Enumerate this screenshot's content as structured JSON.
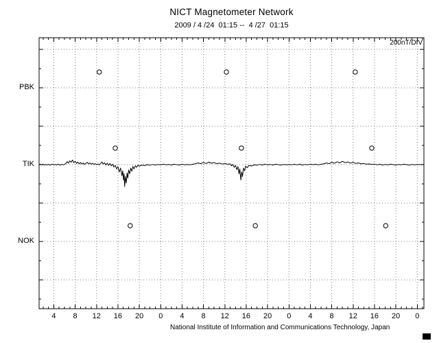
{
  "chart_data": {
    "type": "line",
    "title": "NICT Magnetometer Network",
    "subtitle": "2009 / 4 /24  01:15 --  4 /27  01:15",
    "unit_label": "200nT/DIV",
    "caption": "National Institute of Information and Communications Technology, Japan",
    "grid": "dotted",
    "x_axis": {
      "t_start": 1.25,
      "t_end": 73.25,
      "major_tick_hours": 4,
      "minor_tick_hours": 1,
      "tick_labels": [
        {
          "t": 4,
          "label": "4"
        },
        {
          "t": 8,
          "label": "8"
        },
        {
          "t": 12,
          "label": "12"
        },
        {
          "t": 16,
          "label": "16"
        },
        {
          "t": 20,
          "label": "20"
        },
        {
          "t": 24,
          "label": "0"
        },
        {
          "t": 28,
          "label": "4"
        },
        {
          "t": 32,
          "label": "8"
        },
        {
          "t": 36,
          "label": "12"
        },
        {
          "t": 40,
          "label": "16"
        },
        {
          "t": 44,
          "label": "20"
        },
        {
          "t": 48,
          "label": "0"
        },
        {
          "t": 52,
          "label": "4"
        },
        {
          "t": 56,
          "label": "8"
        },
        {
          "t": 60,
          "label": "12"
        },
        {
          "t": 64,
          "label": "16"
        },
        {
          "t": 68,
          "label": "20"
        },
        {
          "t": 72,
          "label": "0"
        }
      ]
    },
    "y_axis": {
      "nT_per_div": 200,
      "stations": [
        {
          "label": "PBK"
        },
        {
          "label": "TIK"
        },
        {
          "label": "NOK"
        }
      ]
    },
    "series": [
      {
        "name": "TIK",
        "station": "TIK",
        "points": [
          [
            1.25,
            0
          ],
          [
            1.5,
            2
          ],
          [
            1.75,
            -1
          ],
          [
            2,
            3
          ],
          [
            2.25,
            -2
          ],
          [
            2.5,
            1
          ],
          [
            2.75,
            -2
          ],
          [
            3,
            2
          ],
          [
            3.25,
            -3
          ],
          [
            3.5,
            0
          ],
          [
            3.75,
            2
          ],
          [
            4,
            -1
          ],
          [
            4.25,
            1
          ],
          [
            4.5,
            -2
          ],
          [
            4.75,
            3
          ],
          [
            5,
            0
          ],
          [
            5.25,
            -2
          ],
          [
            5.5,
            2
          ],
          [
            5.75,
            -1
          ],
          [
            6,
            1
          ],
          [
            6.25,
            6
          ],
          [
            6.5,
            16
          ],
          [
            6.75,
            8
          ],
          [
            7,
            20
          ],
          [
            7.25,
            12
          ],
          [
            7.5,
            24
          ],
          [
            7.75,
            10
          ],
          [
            8,
            18
          ],
          [
            8.25,
            6
          ],
          [
            8.5,
            14
          ],
          [
            8.75,
            4
          ],
          [
            9,
            11
          ],
          [
            9.25,
            3
          ],
          [
            9.5,
            9
          ],
          [
            9.75,
            1
          ],
          [
            10,
            7
          ],
          [
            10.25,
            12
          ],
          [
            10.5,
            4
          ],
          [
            10.75,
            9
          ],
          [
            11,
            2
          ],
          [
            11.25,
            7
          ],
          [
            11.5,
            1
          ],
          [
            11.75,
            5
          ],
          [
            12,
            0
          ],
          [
            12.25,
            4
          ],
          [
            12.5,
            -1
          ],
          [
            12.75,
            6
          ],
          [
            13,
            14
          ],
          [
            13.25,
            3
          ],
          [
            13.5,
            10
          ],
          [
            13.75,
            -2
          ],
          [
            14,
            8
          ],
          [
            14.25,
            -4
          ],
          [
            14.5,
            6
          ],
          [
            14.75,
            -6
          ],
          [
            15,
            2
          ],
          [
            15.25,
            -12
          ],
          [
            15.5,
            -4
          ],
          [
            15.75,
            -22
          ],
          [
            16,
            -10
          ],
          [
            16.25,
            -38
          ],
          [
            16.5,
            -18
          ],
          [
            16.75,
            -58
          ],
          [
            16.9,
            -32
          ],
          [
            17.05,
            -80
          ],
          [
            17.15,
            -48
          ],
          [
            17.25,
            -114
          ],
          [
            17.4,
            -62
          ],
          [
            17.55,
            -96
          ],
          [
            17.7,
            -44
          ],
          [
            17.85,
            -70
          ],
          [
            18,
            -28
          ],
          [
            18.2,
            -48
          ],
          [
            18.4,
            -18
          ],
          [
            18.6,
            -34
          ],
          [
            18.8,
            -10
          ],
          [
            19,
            -22
          ],
          [
            19.25,
            -6
          ],
          [
            19.5,
            -14
          ],
          [
            19.75,
            -3
          ],
          [
            20,
            -8
          ],
          [
            20.5,
            -2
          ],
          [
            21,
            -5
          ],
          [
            21.5,
            0
          ],
          [
            22,
            -3
          ],
          [
            22.5,
            1
          ],
          [
            23,
            -2
          ],
          [
            23.5,
            1
          ],
          [
            24,
            -1
          ],
          [
            24.5,
            2
          ],
          [
            25,
            -1
          ],
          [
            25.5,
            1
          ],
          [
            26,
            -2
          ],
          [
            26.5,
            2
          ],
          [
            27,
            0
          ],
          [
            27.5,
            -2
          ],
          [
            28,
            2
          ],
          [
            28.5,
            -1
          ],
          [
            29,
            1
          ],
          [
            29.5,
            -1
          ],
          [
            30,
            2
          ],
          [
            30.5,
            5
          ],
          [
            31,
            9
          ],
          [
            31.5,
            5
          ],
          [
            32,
            11
          ],
          [
            32.5,
            6
          ],
          [
            33,
            13
          ],
          [
            33.5,
            7
          ],
          [
            34,
            11
          ],
          [
            34.5,
            5
          ],
          [
            35,
            8
          ],
          [
            35.5,
            3
          ],
          [
            36,
            6
          ],
          [
            36.5,
            2
          ],
          [
            37,
            4
          ],
          [
            37.25,
            -6
          ],
          [
            37.5,
            1
          ],
          [
            37.75,
            -14
          ],
          [
            38,
            -4
          ],
          [
            38.25,
            -26
          ],
          [
            38.45,
            -10
          ],
          [
            38.65,
            -48
          ],
          [
            38.8,
            -22
          ],
          [
            39,
            -80
          ],
          [
            39.15,
            -38
          ],
          [
            39.3,
            -62
          ],
          [
            39.5,
            -18
          ],
          [
            39.7,
            -32
          ],
          [
            39.9,
            -8
          ],
          [
            40.2,
            -16
          ],
          [
            40.5,
            -4
          ],
          [
            41,
            -7
          ],
          [
            41.5,
            -1
          ],
          [
            42,
            -3
          ],
          [
            42.5,
            1
          ],
          [
            43,
            -2
          ],
          [
            43.5,
            2
          ],
          [
            44,
            -1
          ],
          [
            44.5,
            1
          ],
          [
            45,
            -2
          ],
          [
            45.5,
            2
          ],
          [
            46,
            0
          ],
          [
            46.5,
            -2
          ],
          [
            47,
            1
          ],
          [
            47.5,
            -1
          ],
          [
            48,
            1
          ],
          [
            48.5,
            -1
          ],
          [
            49,
            2
          ],
          [
            49.5,
            -1
          ],
          [
            50,
            2
          ],
          [
            50.5,
            -2
          ],
          [
            51,
            1
          ],
          [
            51.5,
            -1
          ],
          [
            52,
            2
          ],
          [
            52.5,
            0
          ],
          [
            53,
            2
          ],
          [
            53.5,
            -1
          ],
          [
            54,
            2
          ],
          [
            54.5,
            4
          ],
          [
            55,
            9
          ],
          [
            55.5,
            5
          ],
          [
            56,
            12
          ],
          [
            56.5,
            7
          ],
          [
            57,
            15
          ],
          [
            57.5,
            9
          ],
          [
            58,
            17
          ],
          [
            58.5,
            10
          ],
          [
            59,
            14
          ],
          [
            59.5,
            8
          ],
          [
            60,
            12
          ],
          [
            60.5,
            6
          ],
          [
            61,
            9
          ],
          [
            61.5,
            4
          ],
          [
            62,
            6
          ],
          [
            62.5,
            2
          ],
          [
            63,
            4
          ],
          [
            63.5,
            1
          ],
          [
            64,
            3
          ],
          [
            64.5,
            -1
          ],
          [
            65,
            2
          ],
          [
            65.5,
            -2
          ],
          [
            66,
            1
          ],
          [
            66.5,
            -1
          ],
          [
            67,
            2
          ],
          [
            67.5,
            0
          ],
          [
            68,
            -2
          ],
          [
            68.5,
            1
          ],
          [
            69,
            -1
          ],
          [
            69.5,
            2
          ],
          [
            70,
            0
          ],
          [
            70.5,
            -2
          ],
          [
            71,
            1
          ],
          [
            71.5,
            -1
          ],
          [
            72,
            1
          ],
          [
            72.5,
            0
          ],
          [
            73,
            1
          ],
          [
            73.25,
            0
          ]
        ]
      }
    ],
    "markers": [
      {
        "station": "PBK",
        "t": 12.5,
        "nT": 82
      },
      {
        "station": "PBK",
        "t": 36.3,
        "nT": 82
      },
      {
        "station": "PBK",
        "t": 60.4,
        "nT": 82
      },
      {
        "station": "TIK",
        "t": 15.5,
        "nT": 86
      },
      {
        "station": "TIK",
        "t": 39.1,
        "nT": 86
      },
      {
        "station": "TIK",
        "t": 63.5,
        "nT": 86
      },
      {
        "station": "NOK",
        "t": 18.3,
        "nT": 82
      },
      {
        "station": "NOK",
        "t": 41.7,
        "nT": 82
      },
      {
        "station": "NOK",
        "t": 66.1,
        "nT": 82
      }
    ]
  }
}
